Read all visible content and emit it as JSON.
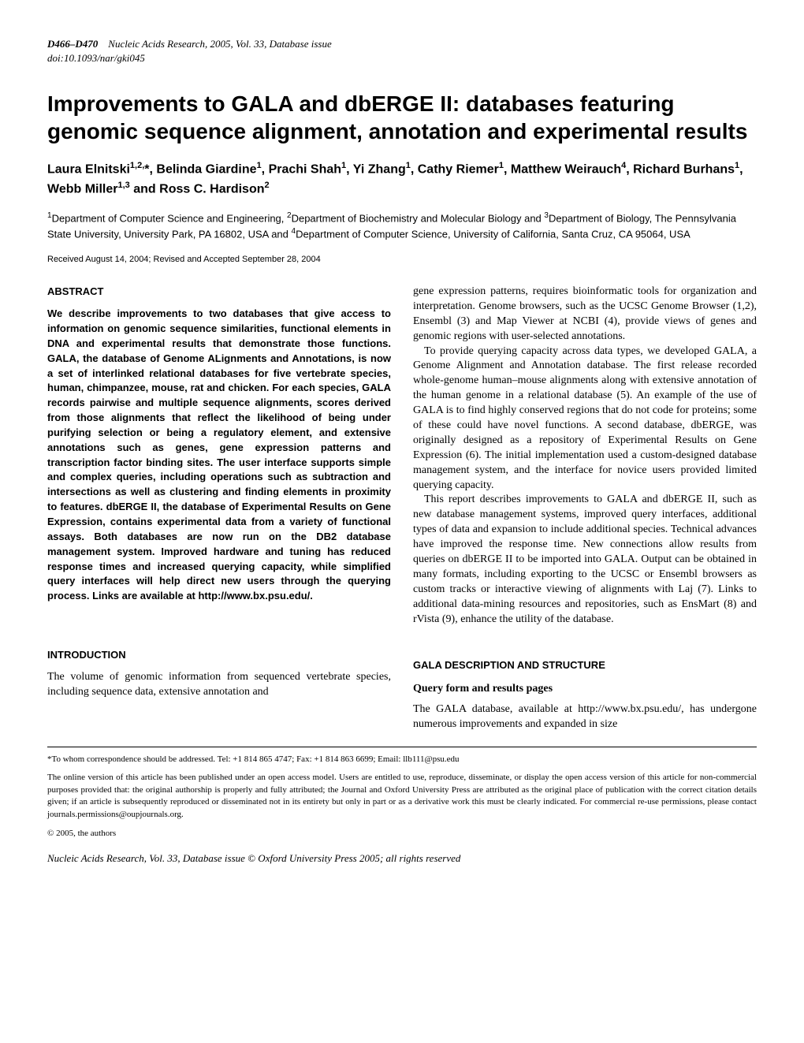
{
  "header": {
    "page_range": "D466–D470",
    "journal_info": "Nucleic Acids Research, 2005, Vol. 33, Database issue",
    "doi": "doi:10.1093/nar/gki045"
  },
  "title": "Improvements to GALA and dbERGE II: databases featuring genomic sequence alignment, annotation and experimental results",
  "authors_html": "Laura Elnitski<sup>1,2,</sup>*, Belinda Giardine<sup>1</sup>, Prachi Shah<sup>1</sup>, Yi Zhang<sup>1</sup>, Cathy Riemer<sup>1</sup>, Matthew Weirauch<sup>4</sup>, Richard Burhans<sup>1</sup>, Webb Miller<sup>1,3</sup> and Ross C. Hardison<sup>2</sup>",
  "affiliations_html": "<sup>1</sup>Department of Computer Science and Engineering, <sup>2</sup>Department of Biochemistry and Molecular Biology and <sup>3</sup>Department of Biology, The Pennsylvania State University, University Park, PA 16802, USA and <sup>4</sup>Department of Computer Science, University of California, Santa Cruz, CA 95064, USA",
  "received": "Received August 14, 2004; Revised and Accepted September 28, 2004",
  "left_column": {
    "abstract_heading": "ABSTRACT",
    "abstract_text": "We describe improvements to two databases that give access to information on genomic sequence similarities, functional elements in DNA and experimental results that demonstrate those functions. GALA, the database of Genome ALignments and Annotations, is now a set of interlinked relational databases for five vertebrate species, human, chimpanzee, mouse, rat and chicken. For each species, GALA records pairwise and multiple sequence alignments, scores derived from those alignments that reflect the likelihood of being under purifying selection or being a regulatory element, and extensive annotations such as genes, gene expression patterns and transcription factor binding sites. The user interface supports simple and complex queries, including operations such as subtraction and intersections as well as clustering and finding elements in proximity to features. dbERGE II, the database of Experimental Results on Gene Expression, contains experimental data from a variety of functional assays. Both databases are now run on the DB2 database management system. Improved hardware and tuning has reduced response times and increased querying capacity, while simplified query interfaces will help direct new users through the querying process. Links are available at http://www.bx.psu.edu/.",
    "intro_heading": "INTRODUCTION",
    "intro_text": "The volume of genomic information from sequenced vertebrate species, including sequence data, extensive annotation and"
  },
  "right_column": {
    "p1": "gene expression patterns, requires bioinformatic tools for organization and interpretation. Genome browsers, such as the UCSC Genome Browser (1,2), Ensembl (3) and Map Viewer at NCBI (4), provide views of genes and genomic regions with user-selected annotations.",
    "p2": "To provide querying capacity across data types, we developed GALA, a Genome Alignment and Annotation database. The first release recorded whole-genome human–mouse alignments along with extensive annotation of the human genome in a relational database (5). An example of the use of GALA is to find highly conserved regions that do not code for proteins; some of these could have novel functions. A second database, dbERGE, was originally designed as a repository of Experimental Results on Gene Expression (6). The initial implementation used a custom-designed database management system, and the interface for novice users provided limited querying capacity.",
    "p3": "This report describes improvements to GALA and dbERGE II, such as new database management systems, improved query interfaces, additional types of data and expansion to include additional species. Technical advances have improved the response time. New connections allow results from queries on dbERGE II to be imported into GALA. Output can be obtained in many formats, including exporting to the UCSC or Ensembl browsers as custom tracks or interactive viewing of alignments with Laj (7). Links to additional data-mining resources and repositories, such as EnsMart (8) and rVista (9), enhance the utility of the database.",
    "gala_heading": "GALA DESCRIPTION AND STRUCTURE",
    "sub_heading": "Query form and results pages",
    "gala_text": "The GALA database, available at http://www.bx.psu.edu/, has undergone numerous improvements and expanded in size"
  },
  "footnotes": {
    "correspondence": "*To whom correspondence should be addressed. Tel: +1 814 865 4747; Fax: +1 814 863 6699; Email: llb111@psu.edu",
    "open_access": "The online version of this article has been published under an open access model. Users are entitled to use, reproduce, disseminate, or display the open access version of this article for non-commercial purposes provided that: the original authorship is properly and fully attributed; the Journal and Oxford University Press are attributed as the original place of publication with the correct citation details given; if an article is subsequently reproduced or disseminated not in its entirety but only in part or as a derivative work this must be clearly indicated. For commercial re-use permissions, please contact journals.permissions@oupjournals.org.",
    "copyright": "© 2005, the authors"
  },
  "footer": "Nucleic Acids Research, Vol. 33, Database issue © Oxford University Press 2005; all rights reserved"
}
